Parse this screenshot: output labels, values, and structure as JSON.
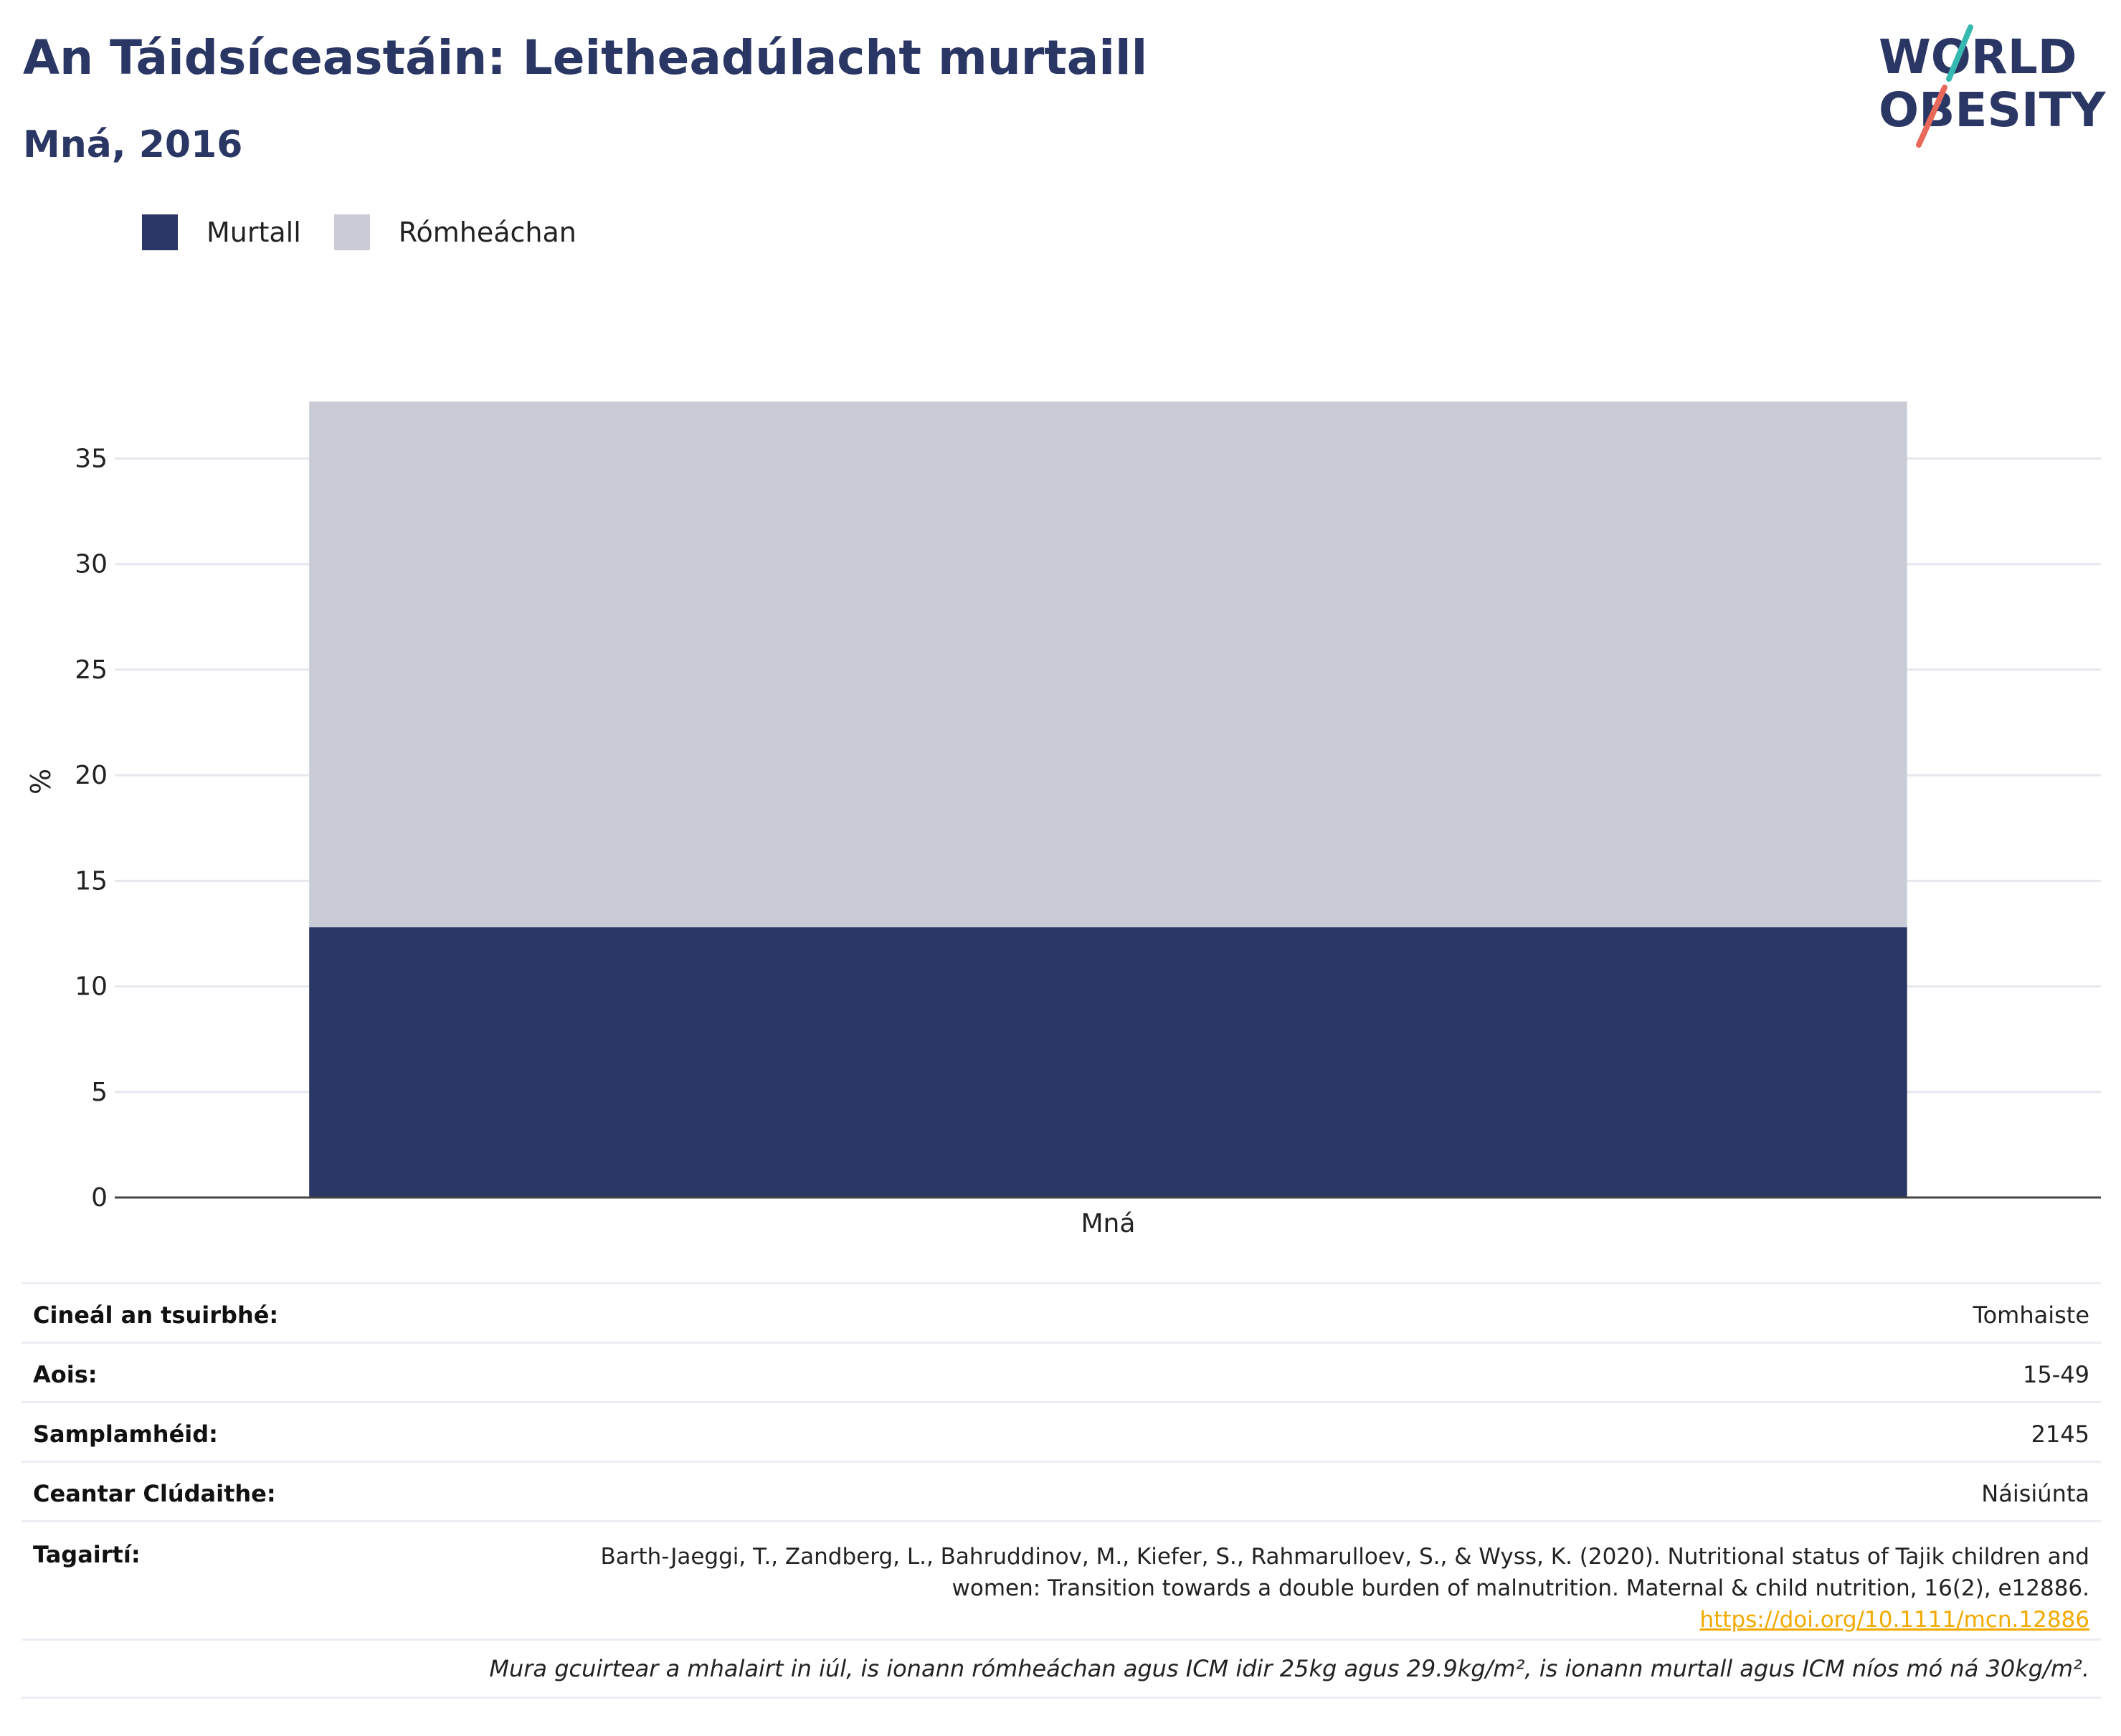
{
  "header": {
    "title": "An Táidsíceastáin: Leitheadúlacht murtaill",
    "subtitle": "Mná, 2016"
  },
  "logo": {
    "line1": "WORLD",
    "line2": "OBESITY",
    "colors": {
      "text": "#2a3663",
      "slash_top": "#35b9b0",
      "slash_bottom": "#e8685a"
    }
  },
  "colors": {
    "murtall": "#2a3663",
    "romheachan": "#c9ccd7",
    "grid": "#e6e8ee",
    "link": "#f2a900"
  },
  "chart_data": {
    "type": "bar",
    "stacked": true,
    "categories": [
      "Mná"
    ],
    "series": [
      {
        "name": "Murtall",
        "values": [
          12.8
        ],
        "color": "#2a3663"
      },
      {
        "name": "Rómheáchan",
        "values": [
          24.9
        ],
        "color": "#c9ccd7"
      }
    ],
    "title": "An Táidsíceastáin: Leitheadúlacht murtaill",
    "subtitle": "Mná, 2016",
    "xlabel": "",
    "ylabel": "%",
    "ylim": [
      0,
      37.7
    ],
    "yticks": [
      0,
      5,
      10,
      15,
      20,
      25,
      30,
      35
    ],
    "grid": true,
    "legend_position": "top-left"
  },
  "info": {
    "rows": [
      {
        "key": "Cineál an tsuirbhé:",
        "value": "Tomhaiste"
      },
      {
        "key": "Aois:",
        "value": "15-49"
      },
      {
        "key": "Samplamhéid:",
        "value": "2145"
      },
      {
        "key": "Ceantar Clúdaithe:",
        "value": "Náisiúnta"
      }
    ],
    "references_label": "Tagairtí:",
    "reference_line1": "Barth-Jaeggi, T., Zandberg, L., Bahruddinov, M., Kiefer, S., Rahmarulloev, S., & Wyss, K. (2020). Nutritional status of Tajik children and",
    "reference_line2": "women: Transition towards a double burden of malnutrition. Maternal & child nutrition, 16(2), e12886.",
    "reference_link": "https://doi.org/10.1111/mcn.12886",
    "note": "Mura gcuirtear a mhalairt in iúl, is ionann rómheáchan agus ICM idir 25kg agus 29.9kg/m², is ionann murtall agus ICM níos mó ná 30kg/m²."
  }
}
